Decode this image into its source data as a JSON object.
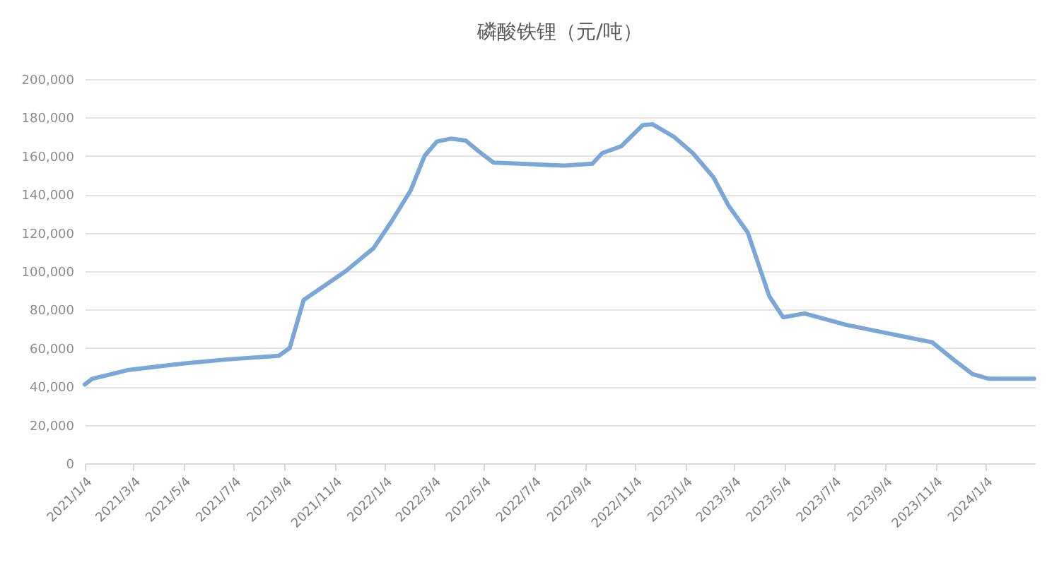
{
  "chart_data": {
    "type": "line",
    "title": "磷酸铁锂（元/吨）",
    "x": [
      "2021-01-04",
      "2021-01-13",
      "2021-02-25",
      "2021-04-24",
      "2021-06-24",
      "2021-08-28",
      "2021-09-10",
      "2021-09-27",
      "2021-11-17",
      "2021-12-21",
      "2022-01-12",
      "2022-02-04",
      "2022-02-21",
      "2022-03-08",
      "2022-03-25",
      "2022-04-12",
      "2022-04-29",
      "2022-05-16",
      "2022-08-10",
      "2022-09-13",
      "2022-09-25",
      "2022-10-18",
      "2022-11-13",
      "2022-11-25",
      "2022-12-21",
      "2023-01-13",
      "2023-02-07",
      "2023-02-25",
      "2023-03-21",
      "2023-04-16",
      "2023-05-03",
      "2023-05-29",
      "2023-07-19",
      "2023-09-09",
      "2023-10-31",
      "2023-11-26",
      "2023-12-19",
      "2024-01-08",
      "2024-03-03"
    ],
    "series": [
      {
        "color": "#7ba7d6",
        "values": [
          41000,
          44000,
          48500,
          51500,
          54000,
          56000,
          60000,
          85000,
          100000,
          112000,
          126000,
          142000,
          160000,
          167500,
          169000,
          168000,
          162000,
          156500,
          155000,
          156000,
          161500,
          165000,
          176000,
          176500,
          170000,
          161500,
          149000,
          134500,
          120000,
          87000,
          76000,
          78000,
          72000,
          67500,
          63000,
          54000,
          46500,
          44000,
          44000
        ]
      }
    ],
    "xlim": [
      "2021-01-04",
      "2024-03-04"
    ],
    "xticks": [
      {
        "value": "2021-01-04",
        "label": "2021/1/4"
      },
      {
        "value": "2021-03-04",
        "label": "2021/3/4"
      },
      {
        "value": "2021-05-04",
        "label": "2021/5/4"
      },
      {
        "value": "2021-07-04",
        "label": "2021/7/4"
      },
      {
        "value": "2021-09-04",
        "label": "2021/9/4"
      },
      {
        "value": "2021-11-04",
        "label": "2021/11/4"
      },
      {
        "value": "2022-01-04",
        "label": "2022/1/4"
      },
      {
        "value": "2022-03-04",
        "label": "2022/3/4"
      },
      {
        "value": "2022-05-04",
        "label": "2022/5/4"
      },
      {
        "value": "2022-07-04",
        "label": "2022/7/4"
      },
      {
        "value": "2022-09-04",
        "label": "2022/9/4"
      },
      {
        "value": "2022-11-04",
        "label": "2022/11/4"
      },
      {
        "value": "2023-01-04",
        "label": "2023/1/4"
      },
      {
        "value": "2023-03-04",
        "label": "2023/3/4"
      },
      {
        "value": "2023-05-04",
        "label": "2023/5/4"
      },
      {
        "value": "2023-07-04",
        "label": "2023/7/4"
      },
      {
        "value": "2023-09-04",
        "label": "2023/9/4"
      },
      {
        "value": "2023-11-04",
        "label": "2023/11/4"
      },
      {
        "value": "2024-01-04",
        "label": "2024/1/4"
      }
    ],
    "ylim": [
      0,
      200000
    ],
    "yticks": [
      0,
      {
        "value": 20000,
        "label": "20,000"
      },
      {
        "value": 40000,
        "label": "40,000"
      },
      {
        "value": 60000,
        "label": "60,000"
      },
      {
        "value": 80000,
        "label": "80,000"
      },
      {
        "value": 100000,
        "label": "100,000"
      },
      {
        "value": 120000,
        "label": "120,000"
      },
      {
        "value": 140000,
        "label": "140,000"
      },
      {
        "value": 160000,
        "label": "160,000"
      },
      {
        "value": 180000,
        "label": "180,000"
      },
      {
        "value": 200000,
        "label": "200,000"
      }
    ],
    "grid": "y",
    "legend": false,
    "marker": "none",
    "line_style": "solid"
  }
}
